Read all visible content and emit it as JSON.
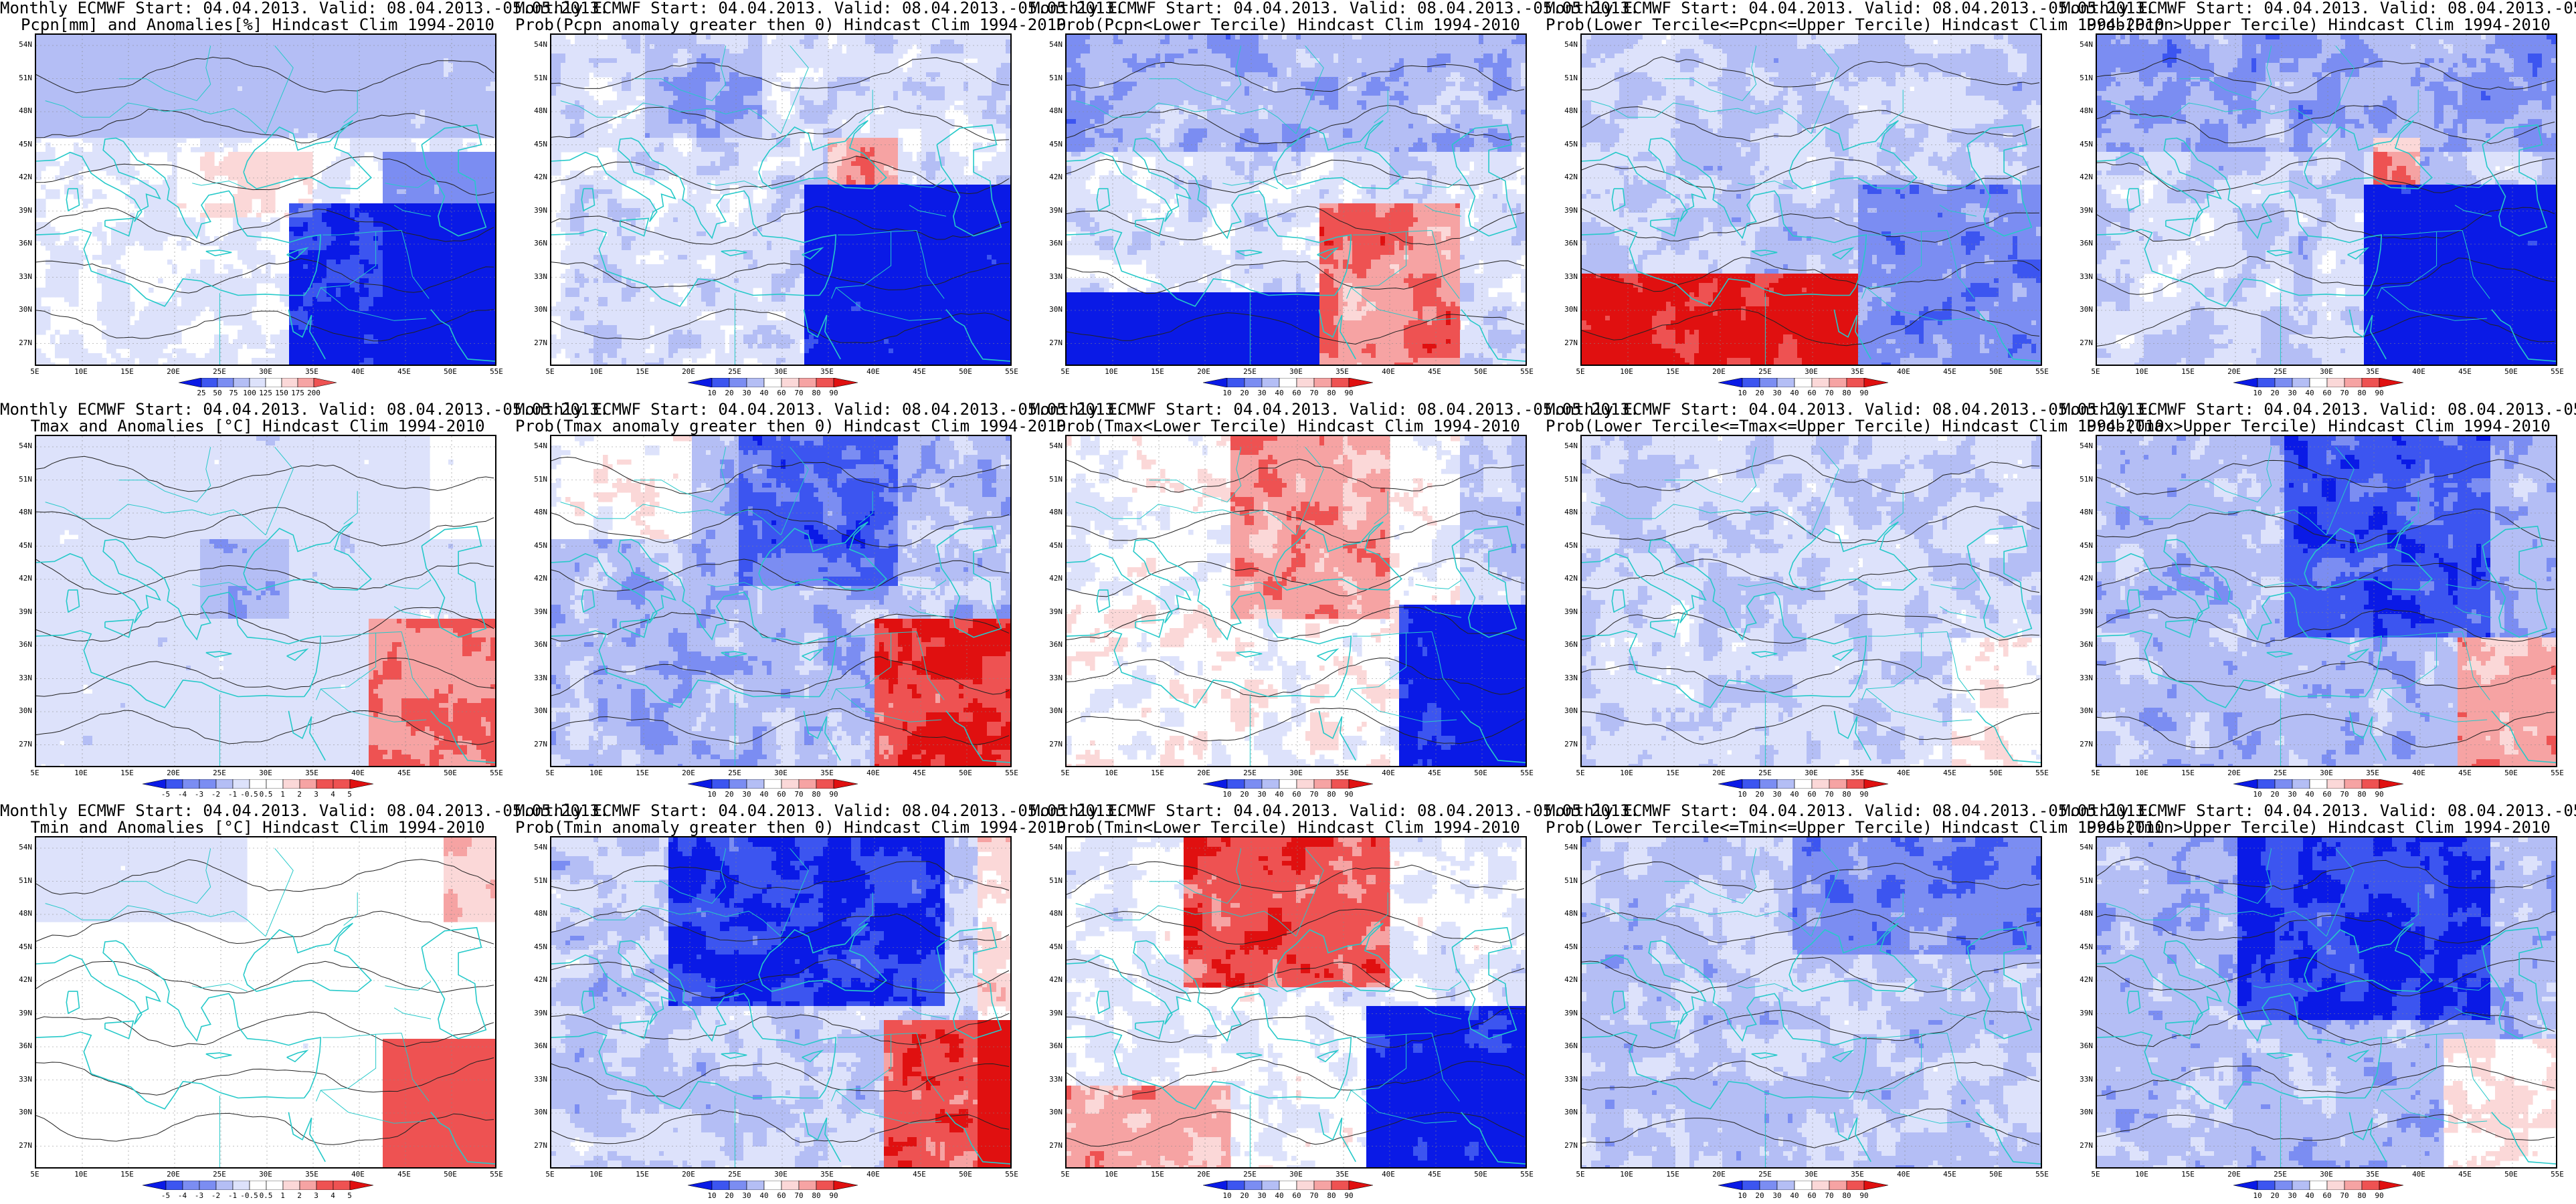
{
  "lat_labels": [
    "54N",
    "51N",
    "48N",
    "45N",
    "42N",
    "39N",
    "36N",
    "33N",
    "30N",
    "27N"
  ],
  "lon_labels": [
    "5E",
    "10E",
    "15E",
    "20E",
    "25E",
    "30E",
    "35E",
    "40E",
    "45E",
    "50E",
    "55E"
  ],
  "header_line": "Monthly ECMWF Start: 04.04.2013. Valid: 08.04.2013.-05.05.2013.",
  "colors": {
    "deep_blue": "#0a1ae6",
    "blue": "#3c55f0",
    "mid_blue": "#7b8df2",
    "light_blue": "#b4bef5",
    "pale_blue": "#dde2fb",
    "white": "#ffffff",
    "pale_red": "#fbd8d8",
    "light_red": "#f6a3a3",
    "red": "#ee5252",
    "deep_red": "#e01010",
    "coast": "#26c9c9",
    "contour": "#222222"
  },
  "panels": [
    {
      "row": 0,
      "col": 0,
      "title2": "Pcpn[mm] and Anomalies[%] Hindcast Clim 1994-2010",
      "scale": "pcpn_anom",
      "cbar_labels": [
        "25",
        "50",
        "75",
        "100",
        "125",
        "150",
        "175",
        "200"
      ],
      "pattern": "pcpn_anom"
    },
    {
      "row": 0,
      "col": 1,
      "title2": "Prob(Pcpn anomaly greater then 0) Hindcast Clim 1994-2010",
      "scale": "prob",
      "cbar_labels": [
        "10",
        "20",
        "30",
        "40",
        "60",
        "70",
        "80",
        "90"
      ],
      "pattern": "pcpn_gt0"
    },
    {
      "row": 0,
      "col": 2,
      "title2": "Prob(Pcpn<Lower Tercile) Hindcast Clim 1994-2010",
      "scale": "prob",
      "cbar_labels": [
        "10",
        "20",
        "30",
        "40",
        "60",
        "70",
        "80",
        "90"
      ],
      "pattern": "pcpn_lower"
    },
    {
      "row": 0,
      "col": 3,
      "title2": "Prob(Lower Tercile<=Pcpn<=Upper Tercile) Hindcast Clim 1994-2010",
      "scale": "prob",
      "cbar_labels": [
        "10",
        "20",
        "30",
        "40",
        "60",
        "70",
        "80",
        "90"
      ],
      "pattern": "pcpn_mid"
    },
    {
      "row": 0,
      "col": 4,
      "title2": "Prob(Pcpn>Upper Tercile) Hindcast Clim 1994-2010",
      "scale": "prob",
      "cbar_labels": [
        "10",
        "20",
        "30",
        "40",
        "60",
        "70",
        "80",
        "90"
      ],
      "pattern": "pcpn_upper"
    },
    {
      "row": 1,
      "col": 0,
      "title2": "Tmax and Anomalies [°C] Hindcast Clim 1994-2010",
      "scale": "temp",
      "cbar_labels": [
        "-5",
        "-4",
        "-3",
        "-2",
        "-1",
        "-0.5",
        "0.5",
        "1",
        "2",
        "3",
        "4",
        "5"
      ],
      "pattern": "tmax_anom"
    },
    {
      "row": 1,
      "col": 1,
      "title2": "Prob(Tmax anomaly greater then 0) Hindcast Clim 1994-2010",
      "scale": "prob",
      "cbar_labels": [
        "10",
        "20",
        "30",
        "40",
        "60",
        "70",
        "80",
        "90"
      ],
      "pattern": "tmax_gt0"
    },
    {
      "row": 1,
      "col": 2,
      "title2": "Prob(Tmax<Lower Tercile) Hindcast Clim 1994-2010",
      "scale": "prob",
      "cbar_labels": [
        "10",
        "20",
        "30",
        "40",
        "60",
        "70",
        "80",
        "90"
      ],
      "pattern": "tmax_lower"
    },
    {
      "row": 1,
      "col": 3,
      "title2": "Prob(Lower Tercile<=Tmax<=Upper Tercile) Hindcast Clim 1994-2010",
      "scale": "prob",
      "cbar_labels": [
        "10",
        "20",
        "30",
        "40",
        "60",
        "70",
        "80",
        "90"
      ],
      "pattern": "tmax_mid"
    },
    {
      "row": 1,
      "col": 4,
      "title2": "Prob(Tmax>Upper Tercile) Hindcast Clim 1994-2010",
      "scale": "prob",
      "cbar_labels": [
        "10",
        "20",
        "30",
        "40",
        "60",
        "70",
        "80",
        "90"
      ],
      "pattern": "tmax_upper"
    },
    {
      "row": 2,
      "col": 0,
      "title2": "Tmin and Anomalies [°C] Hindcast Clim 1994-2010",
      "scale": "temp",
      "cbar_labels": [
        "-5",
        "-4",
        "-3",
        "-2",
        "-1",
        "-0.5",
        "0.5",
        "1",
        "2",
        "3",
        "4",
        "5"
      ],
      "pattern": "tmin_anom"
    },
    {
      "row": 2,
      "col": 1,
      "title2": "Prob(Tmin anomaly greater then 0) Hindcast Clim 1994-2010",
      "scale": "prob",
      "cbar_labels": [
        "10",
        "20",
        "30",
        "40",
        "60",
        "70",
        "80",
        "90"
      ],
      "pattern": "tmin_gt0"
    },
    {
      "row": 2,
      "col": 2,
      "title2": "Prob(Tmin<Lower Tercile) Hindcast Clim 1994-2010",
      "scale": "prob",
      "cbar_labels": [
        "10",
        "20",
        "30",
        "40",
        "60",
        "70",
        "80",
        "90"
      ],
      "pattern": "tmin_lower"
    },
    {
      "row": 2,
      "col": 3,
      "title2": "Prob(Lower Tercile<=Tmin<=Upper Tercile) Hindcast Clim 1994-2010",
      "scale": "prob",
      "cbar_labels": [
        "10",
        "20",
        "30",
        "40",
        "60",
        "70",
        "80",
        "90"
      ],
      "pattern": "tmin_mid"
    },
    {
      "row": 2,
      "col": 4,
      "title2": "Prob(Tmin>Upper Tercile) Hindcast Clim 1994-2010",
      "scale": "prob",
      "cbar_labels": [
        "10",
        "20",
        "30",
        "40",
        "60",
        "70",
        "80",
        "90"
      ],
      "pattern": "tmin_upper"
    }
  ]
}
